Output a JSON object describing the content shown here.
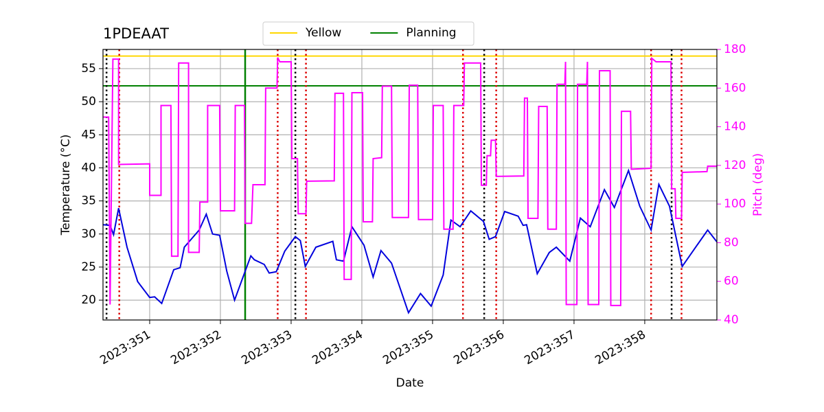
{
  "chart_data": {
    "type": "line",
    "title": "1PDEAAT",
    "xlabel": "Date",
    "ylabel": "Temperature (°C)",
    "y2label": "Pitch (deg)",
    "y2color": "#ff00ff",
    "xlim": [
      350.34,
      359.02
    ],
    "ylim": [
      17,
      57.9
    ],
    "y2lim": [
      40,
      180
    ],
    "xticks": [
      {
        "value": 351,
        "label": "2023:351"
      },
      {
        "value": 352,
        "label": "2023:352"
      },
      {
        "value": 353,
        "label": "2023:353"
      },
      {
        "value": 354,
        "label": "2023:354"
      },
      {
        "value": 355,
        "label": "2023:355"
      },
      {
        "value": 356,
        "label": "2023:356"
      },
      {
        "value": 357,
        "label": "2023:357"
      },
      {
        "value": 358,
        "label": "2023:358"
      }
    ],
    "yticks": [
      20,
      25,
      30,
      35,
      40,
      45,
      50,
      55
    ],
    "y2ticks": [
      40,
      60,
      80,
      100,
      120,
      140,
      160,
      180
    ],
    "grid": true,
    "legend": "upper center",
    "series": [
      {
        "color": "#0000dd",
        "x": [
          350.34,
          350.44,
          350.49,
          350.56,
          350.68,
          350.83,
          351.0,
          351.07,
          351.17,
          351.34,
          351.43,
          351.49,
          351.7,
          351.8,
          351.89,
          351.99,
          352.09,
          352.2,
          352.33,
          352.43,
          352.48,
          352.62,
          352.69,
          352.79,
          352.91,
          353.06,
          353.13,
          353.2,
          353.35,
          353.59,
          353.64,
          353.74,
          353.86,
          354.03,
          354.16,
          354.27,
          354.42,
          354.66,
          354.83,
          354.98,
          355.15,
          355.26,
          355.39,
          355.54,
          355.72,
          355.8,
          355.89,
          356.02,
          356.21,
          356.28,
          356.33,
          356.48,
          356.65,
          356.75,
          356.94,
          357.09,
          357.23,
          357.43,
          357.57,
          357.77,
          357.93,
          358.09,
          358.2,
          358.35,
          358.53,
          358.89,
          359.02
        ],
        "values": [
          31.4,
          31.3,
          29.9,
          33.9,
          28,
          22.8,
          20.4,
          20.5,
          19.5,
          24.6,
          24.9,
          28,
          30.6,
          33,
          30,
          29.8,
          24.4,
          20,
          23.8,
          26.7,
          26.1,
          25.4,
          24.1,
          24.3,
          27.4,
          29.6,
          29,
          25.1,
          28,
          28.9,
          26.1,
          25.9,
          31.1,
          28.3,
          23.5,
          27.5,
          25.6,
          18.1,
          21,
          19.1,
          23.8,
          32.1,
          31.1,
          33.5,
          31.9,
          29.2,
          29.6,
          33.4,
          32.7,
          31.3,
          31.4,
          24,
          27.2,
          28,
          25.9,
          32.4,
          31.1,
          36.7,
          34,
          39.6,
          34.2,
          30.6,
          37.5,
          34.2,
          25.1,
          30.6,
          28.8
        ]
      },
      {
        "color": "#ff00ff",
        "axis": "y2",
        "x": [
          350.34,
          350.42,
          350.44,
          350.48,
          350.56,
          350.56,
          351.0,
          351.0,
          351.16,
          351.16,
          351.3,
          351.31,
          351.4,
          351.41,
          351.55,
          351.55,
          351.7,
          351.71,
          351.82,
          351.82,
          351.99,
          352.0,
          352.2,
          352.21,
          352.34,
          352.35,
          352.44,
          352.46,
          352.63,
          352.64,
          352.8,
          352.81,
          352.84,
          353.0,
          353.01,
          353.09,
          353.1,
          353.21,
          353.22,
          353.61,
          353.62,
          353.74,
          353.75,
          353.85,
          353.86,
          354.01,
          354.02,
          354.15,
          354.16,
          354.28,
          354.29,
          354.42,
          354.43,
          354.66,
          354.67,
          354.79,
          354.8,
          355.0,
          355.01,
          355.15,
          355.16,
          355.29,
          355.3,
          355.44,
          355.45,
          355.68,
          355.69,
          355.76,
          355.77,
          355.82,
          355.83,
          355.89,
          355.9,
          356.29,
          356.3,
          356.34,
          356.35,
          356.49,
          356.5,
          356.62,
          356.63,
          356.75,
          356.76,
          356.87,
          356.88,
          356.89,
          357.04,
          357.05,
          357.18,
          357.19,
          357.2,
          357.35,
          357.36,
          357.51,
          357.52,
          357.66,
          357.67,
          357.8,
          357.81,
          358.09,
          358.1,
          358.16,
          358.37,
          358.38,
          358.43,
          358.44,
          358.52,
          358.53,
          358.88,
          358.89,
          359.02
        ],
        "values": [
          145,
          145,
          48,
          175,
          175,
          120.5,
          120.8,
          104.5,
          104.5,
          151,
          151,
          73,
          73,
          173,
          173,
          75,
          75,
          101,
          101,
          151,
          151,
          96.5,
          96.5,
          151,
          151,
          90,
          90,
          110,
          110,
          160,
          160,
          175.8,
          173.6,
          173.6,
          123.5,
          123.5,
          95,
          95,
          111.8,
          112,
          157.3,
          157.3,
          61,
          61,
          157.6,
          157.6,
          90.8,
          90.8,
          123.5,
          124,
          161,
          161,
          93,
          93,
          161.5,
          161.5,
          92,
          92,
          151,
          151,
          87,
          87,
          151,
          151,
          173,
          173,
          109.7,
          109.7,
          125,
          125,
          133,
          133,
          114.3,
          114.5,
          154.8,
          154.8,
          92.6,
          92.6,
          150.5,
          150.5,
          87,
          87,
          162,
          162,
          173.6,
          48,
          48,
          162,
          162,
          173.6,
          48,
          48,
          169,
          169,
          47.5,
          47.5,
          148,
          148,
          118,
          118.5,
          175.4,
          173.6,
          173.6,
          107.9,
          107.9,
          92.6,
          92.6,
          116.4,
          116.8,
          119.6,
          119.6
        ]
      }
    ],
    "hlines": [
      {
        "name": "Yellow",
        "value": 56.9,
        "color": "#ffd700"
      },
      {
        "name": "Planning",
        "value": 52.4,
        "color": "#008000"
      }
    ],
    "vlines": [
      {
        "color": "#008000",
        "style": "solid",
        "x": [
          352.35
        ]
      },
      {
        "color": "#000000",
        "style": "dotted",
        "x": [
          350.39,
          353.06,
          355.73,
          358.38
        ]
      },
      {
        "color": "#dd0000",
        "style": "dotted",
        "x": [
          350.57,
          352.81,
          353.21,
          355.43,
          355.9,
          358.09,
          358.52
        ]
      }
    ]
  }
}
